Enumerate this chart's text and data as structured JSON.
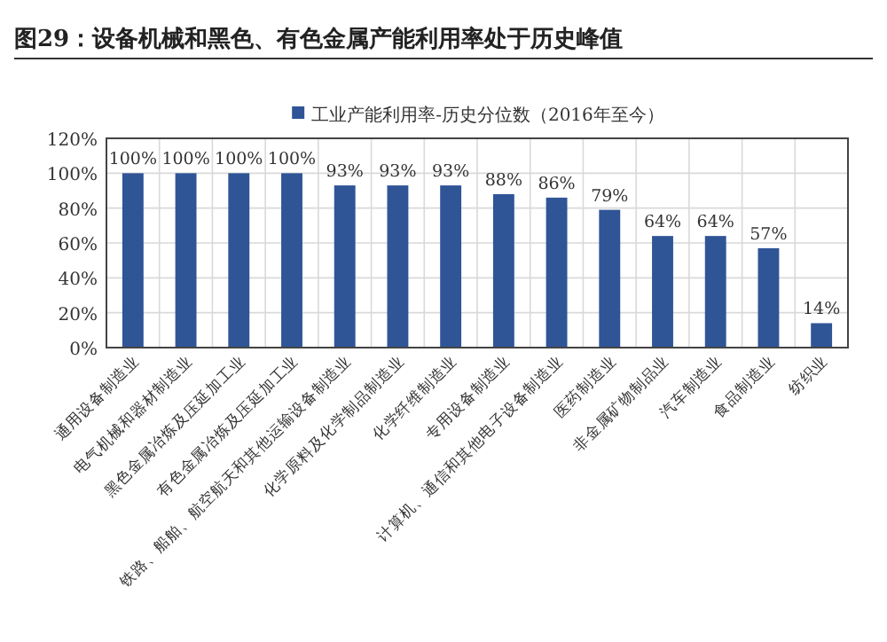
{
  "chart_data": {
    "type": "bar",
    "title": "图29：设备机械和黑色、有色金属产能利用率处于历史峰值",
    "categories": [
      "通用设备制造业",
      "电气机械和器材制造业",
      "黑色金属冶炼及压延加工业",
      "有色金属冶炼及压延加工业",
      "铁路、船舶、航空航天和其他运输设备制造业",
      "化学原料及化学制品制造业",
      "化学纤维制造业",
      "专用设备制造业",
      "计算机、通信和其他电子设备制造业",
      "医药制造业",
      "非金属矿物制品业",
      "汽车制造业",
      "食品制造业",
      "纺织业"
    ],
    "series": [
      {
        "name": "工业产能利用率-历史分位数（2016年至今）",
        "color": "#2f5597",
        "values": [
          100,
          100,
          100,
          100,
          93,
          93,
          93,
          88,
          86,
          79,
          64,
          64,
          57,
          14
        ]
      }
    ],
    "value_labels": [
      "100%",
      "100%",
      "100%",
      "100%",
      "93%",
      "93%",
      "93%",
      "88%",
      "86%",
      "79%",
      "64%",
      "64%",
      "57%",
      "14%"
    ],
    "ylim": [
      0,
      120
    ],
    "yticks": [
      {
        "value": 0,
        "label": "0%"
      },
      {
        "value": 20,
        "label": "20%"
      },
      {
        "value": 40,
        "label": "40%"
      },
      {
        "value": 60,
        "label": "60%"
      },
      {
        "value": 80,
        "label": "80%"
      },
      {
        "value": 100,
        "label": "100%"
      },
      {
        "value": 120,
        "label": "120%"
      }
    ],
    "grid": true,
    "legend": "top"
  }
}
